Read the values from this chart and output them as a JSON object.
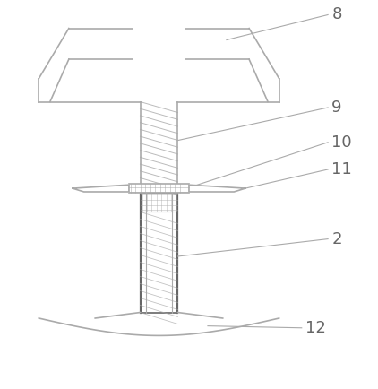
{
  "bg_color": "#ffffff",
  "line_color": "#aaaaaa",
  "dark_line": "#666666",
  "label_color": "#666666",
  "fig_width": 4.22,
  "fig_height": 4.34,
  "label_fontsize": 13
}
